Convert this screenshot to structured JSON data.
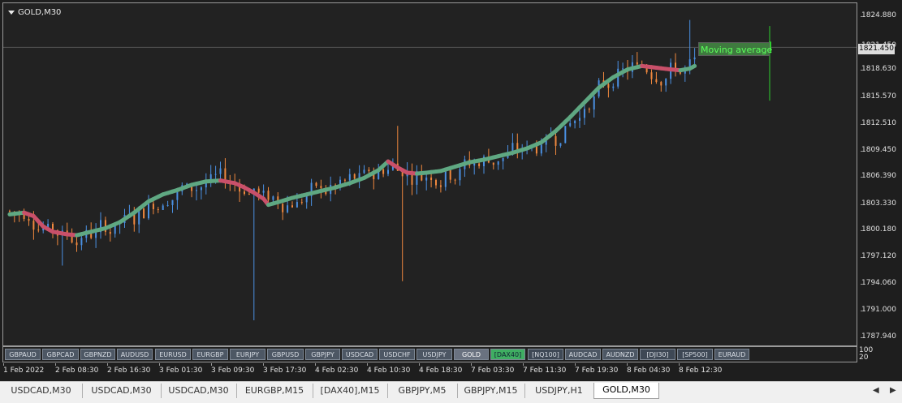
{
  "chart": {
    "title": "GOLD,M30",
    "current_price": "1821.450",
    "indicator_label": "Moving average",
    "subwindow_scale": [
      "100",
      "20"
    ]
  },
  "price_axis": [
    "1824.880",
    "1821.450",
    "1818.630",
    "1815.570",
    "1812.510",
    "1809.450",
    "1806.390",
    "1803.330",
    "1800.180",
    "1797.120",
    "1794.060",
    "1791.000",
    "1787.940"
  ],
  "time_axis": [
    "1 Feb 2022",
    "2 Feb 08:30",
    "2 Feb 16:30",
    "3 Feb 01:30",
    "3 Feb 09:30",
    "3 Feb 17:30",
    "4 Feb 02:30",
    "4 Feb 10:30",
    "4 Feb 18:30",
    "7 Feb 03:30",
    "7 Feb 11:30",
    "7 Feb 19:30",
    "8 Feb 04:30",
    "8 Feb 12:30"
  ],
  "symbol_buttons": [
    "GBPAUD",
    "GBPCAD",
    "GBPNZD",
    "AUDUSD",
    "EURUSD",
    "EURGBP",
    "EURJPY",
    "GBPUSD",
    "GBPJPY",
    "USDCAD",
    "USDCHF",
    "USDJPY",
    "GOLD",
    "[DAX40]",
    "[NQ100]",
    "AUDCAD",
    "AUDNZD",
    "[DJI30]",
    "[SP500]",
    "EURAUD"
  ],
  "selected_symbol": "GOLD",
  "tabs": [
    "USDCAD,M30",
    "USDCAD,M30",
    "USDCAD,M30",
    "EURGBP,M15",
    "[DAX40],M15",
    "GBPJPY,M5",
    "GBPJPY,M15",
    "USDJPY,H1",
    "GOLD,M30"
  ],
  "active_tab": "GOLD,M30",
  "icons": {
    "collapse": "triangle-down-icon",
    "scroll_left": "arrow-left-icon",
    "scroll_right": "arrow-right-icon"
  },
  "colors": {
    "bull": "#4a90e2",
    "bear": "#f0883e",
    "ma_up": "#5fa882",
    "ma_down": "#c9506a",
    "background": "#222222",
    "grid": "#555555",
    "signal": "#2fcf2f"
  },
  "chart_data": {
    "type": "candlestick",
    "title": "GOLD,M30",
    "ylim": [
      1787.94,
      1825.5
    ],
    "ma_points": [
      [
        1,
        1802.2
      ],
      [
        4,
        1802.4
      ],
      [
        6,
        1802.0
      ],
      [
        8,
        1800.8
      ],
      [
        10,
        1800.2
      ],
      [
        13,
        1799.9
      ],
      [
        15,
        1799.8
      ],
      [
        18,
        1800.2
      ],
      [
        21,
        1800.6
      ],
      [
        24,
        1801.3
      ],
      [
        27,
        1802.4
      ],
      [
        30,
        1803.7
      ],
      [
        33,
        1804.5
      ],
      [
        36,
        1805.0
      ],
      [
        39,
        1805.6
      ],
      [
        42,
        1806.0
      ],
      [
        45,
        1806.1
      ],
      [
        48,
        1805.8
      ],
      [
        50,
        1805.3
      ],
      [
        52,
        1804.7
      ],
      [
        54,
        1804.0
      ],
      [
        55,
        1803.3
      ],
      [
        57,
        1803.6
      ],
      [
        60,
        1804.1
      ],
      [
        63,
        1804.5
      ],
      [
        66,
        1804.9
      ],
      [
        69,
        1805.3
      ],
      [
        72,
        1805.8
      ],
      [
        75,
        1806.4
      ],
      [
        78,
        1807.3
      ],
      [
        80,
        1808.3
      ],
      [
        82,
        1807.6
      ],
      [
        84,
        1807.0
      ],
      [
        86,
        1806.9
      ],
      [
        88,
        1807.0
      ],
      [
        91,
        1807.2
      ],
      [
        94,
        1807.7
      ],
      [
        97,
        1808.2
      ],
      [
        100,
        1808.5
      ],
      [
        103,
        1808.9
      ],
      [
        106,
        1809.3
      ],
      [
        109,
        1809.8
      ],
      [
        112,
        1810.5
      ],
      [
        115,
        1811.8
      ],
      [
        118,
        1813.4
      ],
      [
        121,
        1815.1
      ],
      [
        124,
        1816.8
      ],
      [
        127,
        1818.0
      ],
      [
        130,
        1818.9
      ],
      [
        133,
        1819.3
      ],
      [
        136,
        1819.1
      ],
      [
        139,
        1818.9
      ],
      [
        141,
        1818.8
      ],
      [
        143,
        1819.0
      ],
      [
        144,
        1819.3
      ]
    ],
    "signal_bar": {
      "high": 1823.9,
      "low": 1815.3,
      "level": 1821.45
    }
  }
}
